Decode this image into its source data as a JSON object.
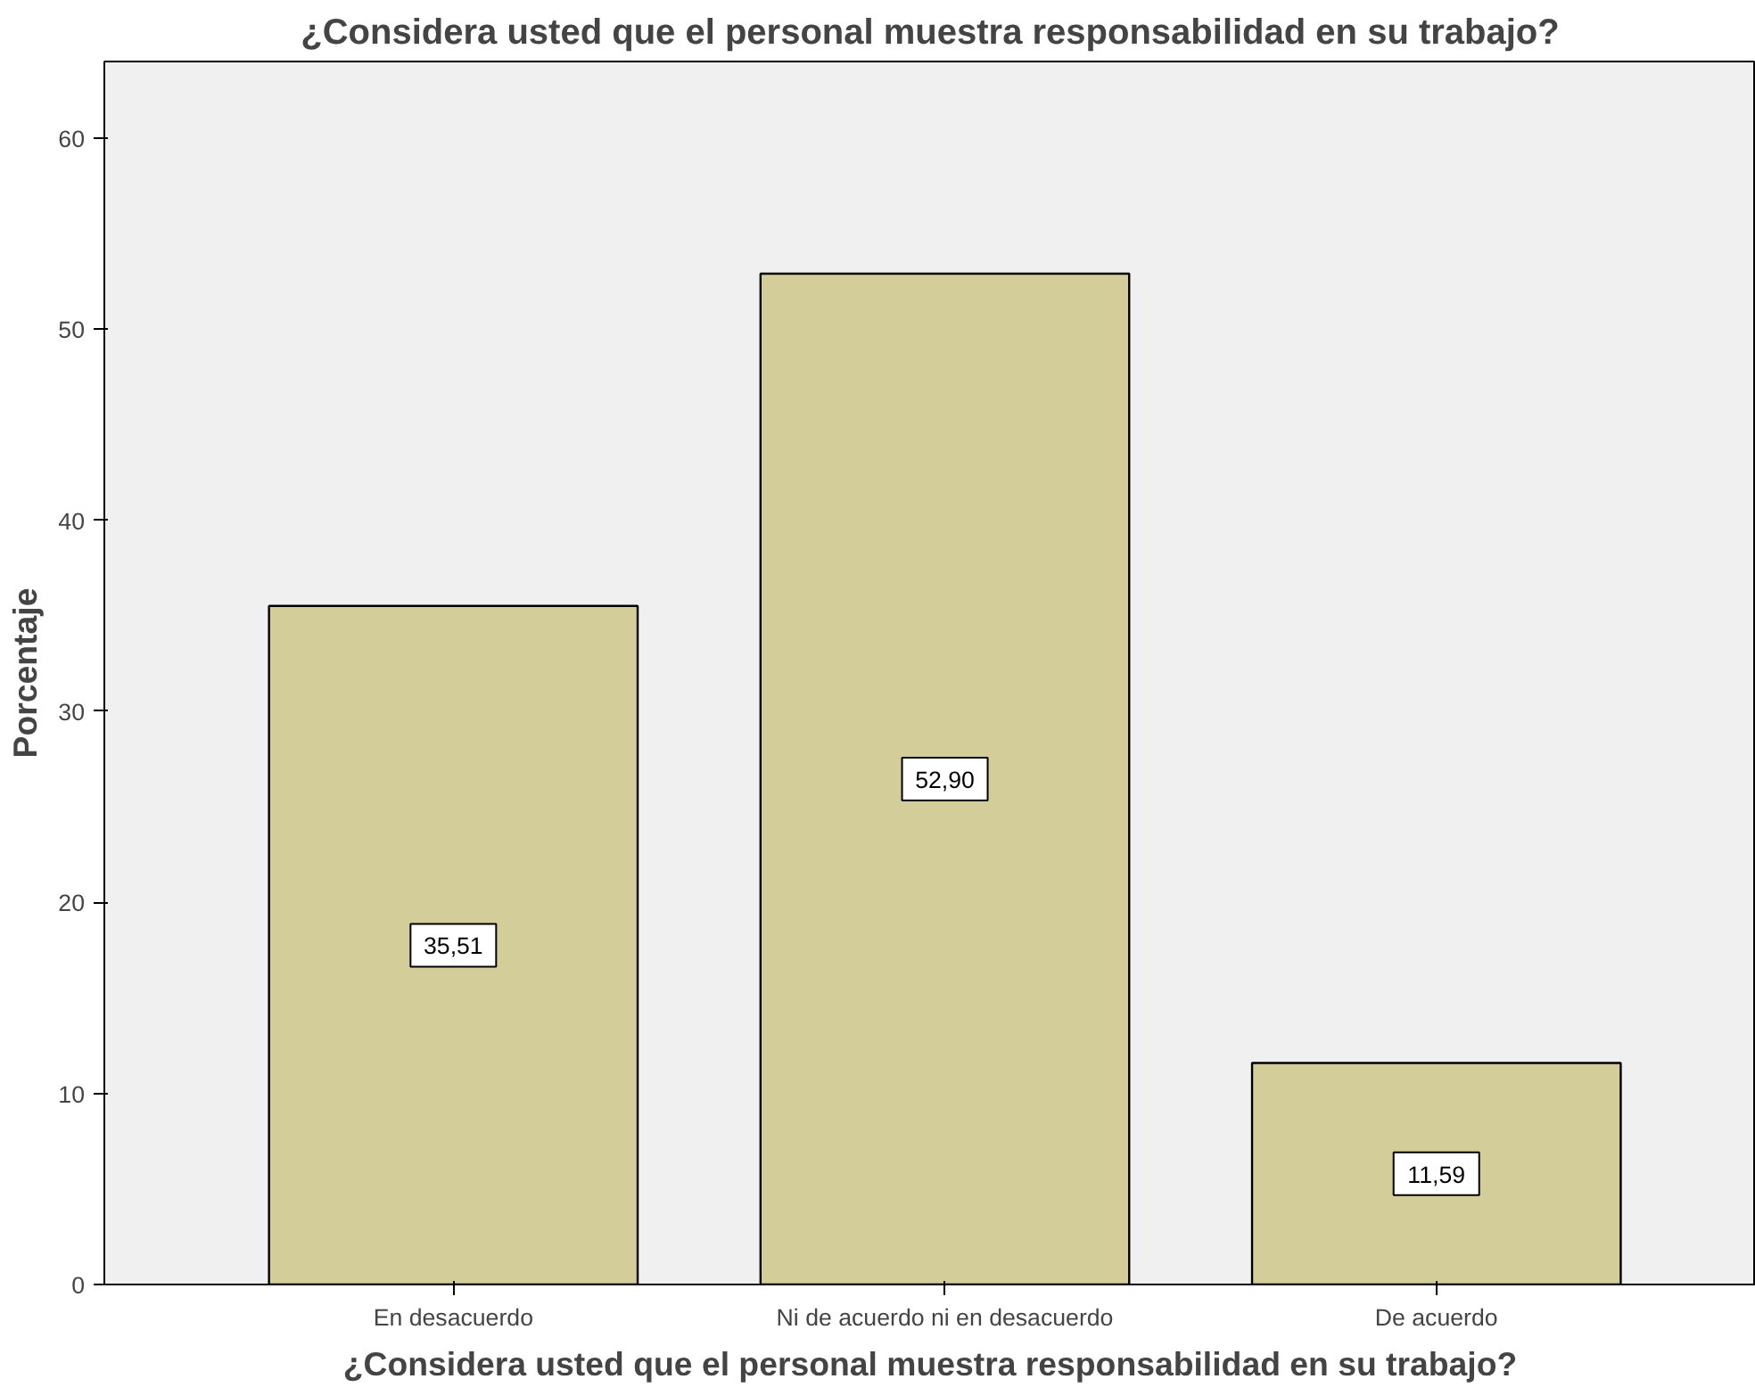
{
  "chart_data": {
    "type": "bar",
    "title": "¿Considera usted que el personal muestra responsabilidad en su trabajo?",
    "xlabel": "¿Considera usted que el personal muestra responsabilidad en su trabajo?",
    "ylabel": "Porcentaje",
    "categories": [
      "En desacuerdo",
      "Ni de acuerdo ni en desacuerdo",
      "De acuerdo"
    ],
    "values": [
      35.51,
      52.9,
      11.59
    ],
    "value_labels": [
      "35,51",
      "52,90",
      "11,59"
    ],
    "color": "#d3ce99",
    "ylim": [
      0,
      64
    ],
    "yticks": [
      0,
      10,
      20,
      30,
      40,
      50,
      60
    ],
    "grid": false
  }
}
